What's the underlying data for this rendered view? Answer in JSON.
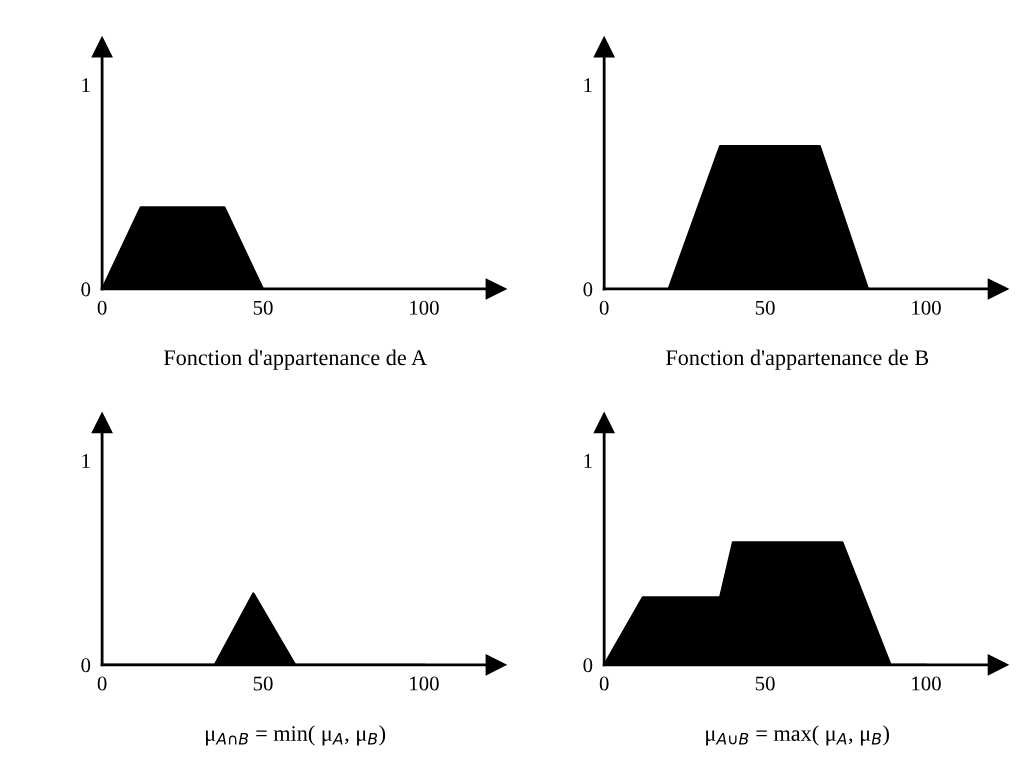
{
  "chart_data": [
    {
      "type": "area",
      "xlabel": "Fonction d'appartenance de A",
      "x": [
        0,
        12,
        38,
        50,
        100
      ],
      "values": [
        0,
        0.4,
        0.4,
        0,
        0
      ],
      "color": "#000000",
      "xlim": [
        0,
        120
      ],
      "ylim": [
        0,
        1.15
      ],
      "xticks": [
        0,
        50,
        100
      ],
      "yticks": [
        0,
        1
      ],
      "grid": false
    },
    {
      "type": "area",
      "xlabel": "Fonction d'appartenance de B",
      "x": [
        0,
        20,
        36,
        67,
        82,
        100
      ],
      "values": [
        0,
        0,
        0.7,
        0.7,
        0,
        0
      ],
      "color": "#000000",
      "xlim": [
        0,
        120
      ],
      "ylim": [
        0,
        1.15
      ],
      "xticks": [
        0,
        50,
        100
      ],
      "yticks": [
        0,
        1
      ],
      "grid": false
    },
    {
      "type": "area",
      "xlabel": "μ$_{A∩B}$ = min( μ$_{A}$, μ$_{B}$)",
      "x": [
        0,
        35,
        47,
        60,
        100
      ],
      "values": [
        0,
        0,
        0.35,
        0,
        0
      ],
      "color": "#000000",
      "xlim": [
        0,
        120
      ],
      "ylim": [
        0,
        1.15
      ],
      "xticks": [
        0,
        50,
        100
      ],
      "yticks": [
        0,
        1
      ],
      "grid": false
    },
    {
      "type": "area",
      "xlabel": "μ$_{A∪B}$ = max( μ$_{A}$, μ$_{B}$)",
      "x": [
        0,
        12,
        36,
        40,
        74,
        89,
        100
      ],
      "values": [
        0,
        0.33,
        0.33,
        0.6,
        0.6,
        0,
        0
      ],
      "color": "#000000",
      "xlim": [
        0,
        120
      ],
      "ylim": [
        0,
        1.15
      ],
      "xticks": [
        0,
        50,
        100
      ],
      "yticks": [
        0,
        1
      ],
      "grid": false
    }
  ]
}
